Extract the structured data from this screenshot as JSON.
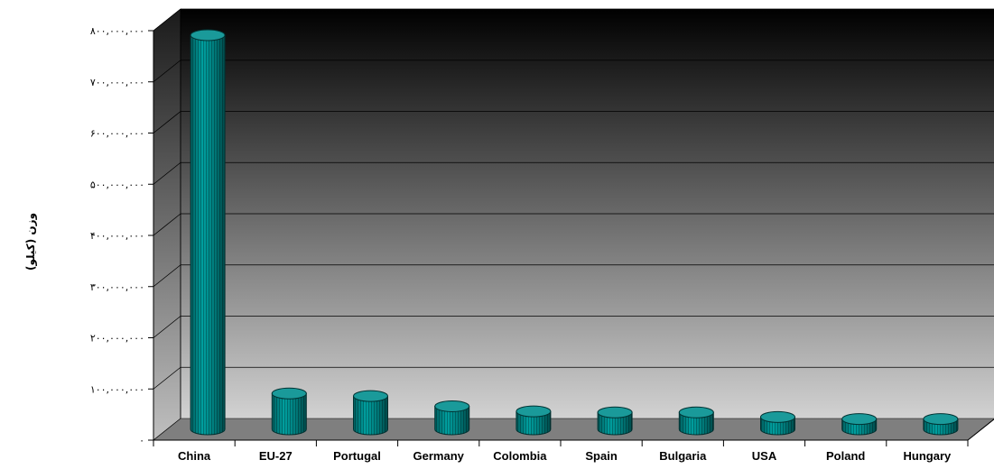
{
  "chart_data": {
    "type": "bar",
    "title": "",
    "xlabel": "",
    "ylabel": "وزن (کیلو)",
    "ylim": [
      0,
      800000000
    ],
    "grid": true,
    "categories": [
      "China",
      "EU-27",
      "Portugal",
      "Germany",
      "Colombia",
      "Spain",
      "Bulgaria",
      "USA",
      "Poland",
      "Hungary"
    ],
    "values": [
      770000000,
      70000000,
      65000000,
      45000000,
      35000000,
      33000000,
      33000000,
      24000000,
      20000000,
      20000000
    ],
    "yticks": [
      0,
      100000000,
      200000000,
      300000000,
      400000000,
      500000000,
      600000000,
      700000000,
      800000000
    ],
    "ytick_labels": [
      "۰",
      "۱۰۰,۰۰۰,۰۰۰",
      "۲۰۰,۰۰۰,۰۰۰",
      "۳۰۰,۰۰۰,۰۰۰",
      "۴۰۰,۰۰۰,۰۰۰",
      "۵۰۰,۰۰۰,۰۰۰",
      "۶۰۰,۰۰۰,۰۰۰",
      "۷۰۰,۰۰۰,۰۰۰",
      "۸۰۰,۰۰۰,۰۰۰"
    ],
    "colors": {
      "bar": "#008080",
      "bar_dark": "#005555",
      "bar_top": "#1a9a9a",
      "wall_top": "#000000",
      "wall_bottom": "#cfcfcf",
      "floor": "#7f7f7f"
    }
  }
}
